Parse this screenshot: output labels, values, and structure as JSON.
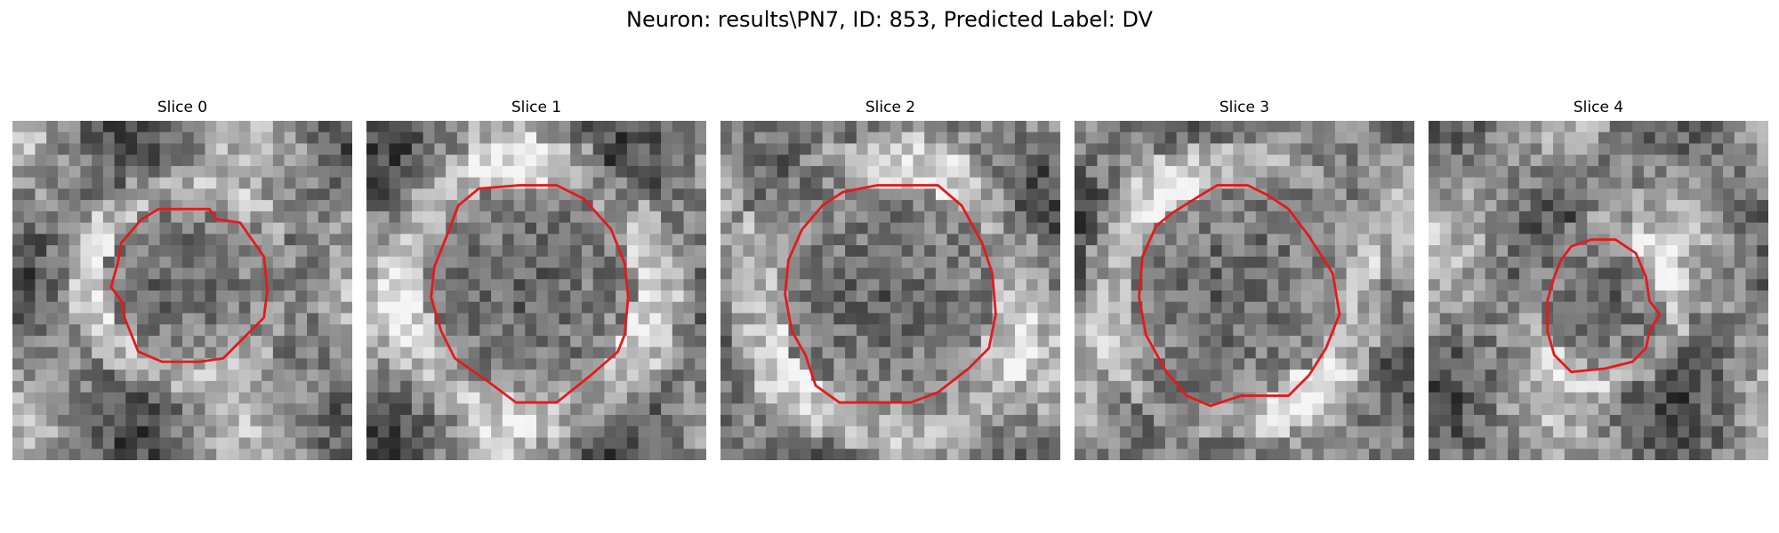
{
  "figure": {
    "title": "Neuron: results\\PN7, ID: 853, Predicted Label: DV",
    "contour_color": "#e41a1c",
    "panels": [
      {
        "title": "Slice 0",
        "seed": 11,
        "contour": [
          [
            0.43,
            0.26
          ],
          [
            0.43,
            0.26
          ],
          [
            0.58,
            0.26
          ],
          [
            0.6,
            0.29
          ],
          [
            0.67,
            0.3
          ],
          [
            0.74,
            0.4
          ],
          [
            0.75,
            0.5
          ],
          [
            0.74,
            0.58
          ],
          [
            0.68,
            0.64
          ],
          [
            0.62,
            0.7
          ],
          [
            0.55,
            0.71
          ],
          [
            0.44,
            0.71
          ],
          [
            0.37,
            0.68
          ],
          [
            0.33,
            0.58
          ],
          [
            0.32,
            0.53
          ],
          [
            0.29,
            0.49
          ],
          [
            0.31,
            0.42
          ],
          [
            0.32,
            0.36
          ],
          [
            0.38,
            0.29
          ]
        ]
      },
      {
        "title": "Slice 1",
        "seed": 23,
        "contour": [
          [
            0.33,
            0.2
          ],
          [
            0.45,
            0.19
          ],
          [
            0.56,
            0.19
          ],
          [
            0.64,
            0.23
          ],
          [
            0.72,
            0.32
          ],
          [
            0.76,
            0.42
          ],
          [
            0.77,
            0.52
          ],
          [
            0.76,
            0.63
          ],
          [
            0.74,
            0.68
          ],
          [
            0.66,
            0.75
          ],
          [
            0.56,
            0.83
          ],
          [
            0.44,
            0.83
          ],
          [
            0.36,
            0.77
          ],
          [
            0.26,
            0.7
          ],
          [
            0.22,
            0.62
          ],
          [
            0.19,
            0.52
          ],
          [
            0.2,
            0.43
          ],
          [
            0.24,
            0.33
          ],
          [
            0.27,
            0.25
          ]
        ]
      },
      {
        "title": "Slice 2",
        "seed": 37,
        "contour": [
          [
            0.36,
            0.21
          ],
          [
            0.46,
            0.19
          ],
          [
            0.64,
            0.19
          ],
          [
            0.71,
            0.25
          ],
          [
            0.77,
            0.36
          ],
          [
            0.8,
            0.45
          ],
          [
            0.81,
            0.57
          ],
          [
            0.79,
            0.67
          ],
          [
            0.73,
            0.73
          ],
          [
            0.64,
            0.8
          ],
          [
            0.56,
            0.83
          ],
          [
            0.35,
            0.83
          ],
          [
            0.28,
            0.78
          ],
          [
            0.25,
            0.69
          ],
          [
            0.21,
            0.62
          ],
          [
            0.19,
            0.51
          ],
          [
            0.2,
            0.41
          ],
          [
            0.24,
            0.32
          ],
          [
            0.3,
            0.25
          ]
        ]
      },
      {
        "title": "Slice 3",
        "seed": 49,
        "contour": [
          [
            0.37,
            0.22
          ],
          [
            0.42,
            0.19
          ],
          [
            0.51,
            0.19
          ],
          [
            0.57,
            0.22
          ],
          [
            0.63,
            0.26
          ],
          [
            0.69,
            0.34
          ],
          [
            0.76,
            0.45
          ],
          [
            0.78,
            0.57
          ],
          [
            0.74,
            0.67
          ],
          [
            0.69,
            0.75
          ],
          [
            0.63,
            0.81
          ],
          [
            0.49,
            0.81
          ],
          [
            0.4,
            0.84
          ],
          [
            0.33,
            0.81
          ],
          [
            0.27,
            0.74
          ],
          [
            0.21,
            0.63
          ],
          [
            0.19,
            0.52
          ],
          [
            0.2,
            0.4
          ],
          [
            0.24,
            0.31
          ],
          [
            0.29,
            0.27
          ]
        ]
      },
      {
        "title": "Slice 4",
        "seed": 61,
        "contour": [
          [
            0.42,
            0.37
          ],
          [
            0.48,
            0.35
          ],
          [
            0.55,
            0.35
          ],
          [
            0.61,
            0.39
          ],
          [
            0.64,
            0.46
          ],
          [
            0.65,
            0.53
          ],
          [
            0.68,
            0.57
          ],
          [
            0.65,
            0.62
          ],
          [
            0.64,
            0.67
          ],
          [
            0.6,
            0.71
          ],
          [
            0.52,
            0.73
          ],
          [
            0.42,
            0.74
          ],
          [
            0.37,
            0.69
          ],
          [
            0.35,
            0.62
          ],
          [
            0.35,
            0.53
          ],
          [
            0.37,
            0.46
          ],
          [
            0.39,
            0.41
          ]
        ]
      }
    ]
  }
}
